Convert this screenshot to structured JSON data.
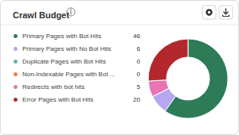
{
  "chart_data": {
    "type": "pie",
    "title": "Crawl Budget",
    "categories": [
      "Primary Pages with Bot Hits",
      "Primary Pages with No Bot Hits",
      "Duplicate Pages with Bot Hits",
      "Non-Indexable Pages with Bot ...",
      "Redirects with bot hits",
      "Error Pages with Bot Hits"
    ],
    "values": [
      46,
      6,
      0,
      0,
      5,
      20
    ],
    "colors": [
      "#2e7b58",
      "#b7a6f0",
      "#5cc08e",
      "#f0813f",
      "#e874b3",
      "#b3282d"
    ],
    "legend": "left"
  }
}
